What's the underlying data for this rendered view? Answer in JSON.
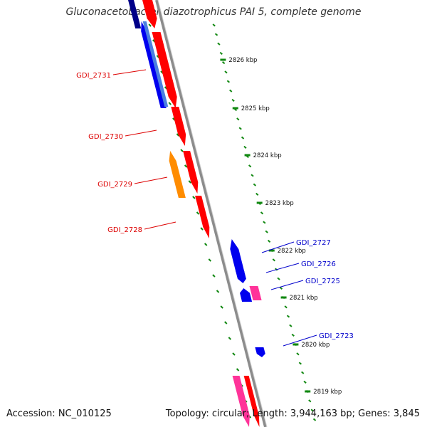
{
  "title": "Gluconacetobacter diazotrophicus PAI 5, complete genome",
  "accession": "Accession: NC_010125",
  "stats": "Topology: circular; Length: 3,944,163 bp; Genes: 3,845",
  "colors": {
    "backbone": "#8c8c8c",
    "tick": "#118811",
    "forward_red": "#ff0000",
    "forward_pink": "#ff3399",
    "reverse_blue": "#0000ee",
    "reverse_orange": "#ff8c00",
    "label_red": "#dd0000",
    "label_blue": "#0000cc"
  },
  "scale_labels": [
    "2826 kbp",
    "2825 kbp",
    "2824 kbp",
    "2823 kbp",
    "2822 kbp",
    "2821 kbp",
    "2820 kbp",
    "2819 kbp"
  ],
  "gene_labels": [
    "GDI_2731",
    "GDI_2730",
    "GDI_2729",
    "GDI_2728",
    "GDI_2727",
    "GDI_2726",
    "GDI_2725",
    "GDI_2723"
  ]
}
